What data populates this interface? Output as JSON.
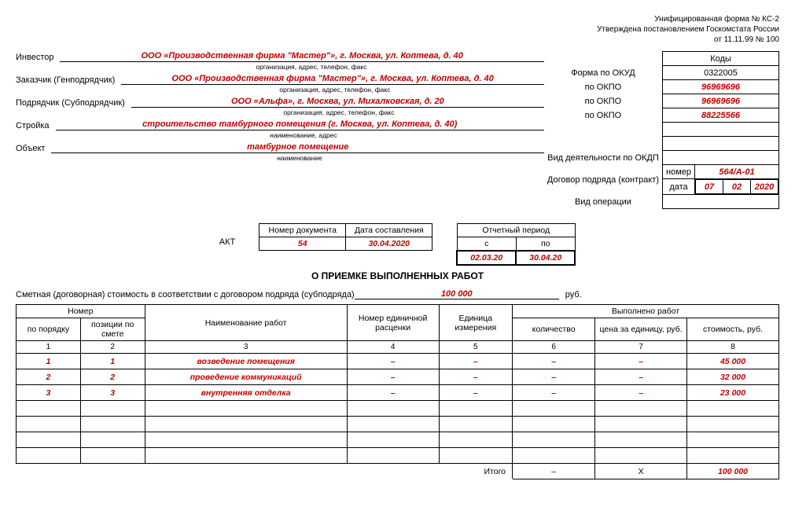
{
  "header": {
    "line1": "Унифицированная форма № КС-2",
    "line2": "Утверждена постановлением Госкомстата России",
    "line3": "от 11.11.99 № 100"
  },
  "codes": {
    "kody": "Коды",
    "okud_label": "Форма по ОКУД",
    "okud": "0322005",
    "okpo_label": "по ОКПО",
    "investor_okpo": "96969696",
    "customer_okpo": "96969696",
    "contractor_okpo": "88225566",
    "okdp_label": "Вид деятельности по ОКДП",
    "okdp": "",
    "contract_label": "Договор подряда (контракт)",
    "nomer_label": "номер",
    "nomer": "564/А-01",
    "data_label": "дата",
    "d": "07",
    "m": "02",
    "y": "2020",
    "oper_label": "Вид операции",
    "oper": ""
  },
  "parties": {
    "investor_label": "Инвестор",
    "investor": "ООО «Производственная фирма \"Мастер\"», г. Москва, ул. Коптева, д. 40",
    "customer_label": "Заказчик (Генподрядчик)",
    "customer": "ООО «Производственная фирма \"Мастер\"», г. Москва, ул. Коптева, д. 40",
    "contractor_label": "Подрядчик (Субподрядчик)",
    "contractor": "ООО «Альфа», г. Москва, ул. Михалковская, д. 20",
    "stroyka_label": "Стройка",
    "stroyka": "строительство тамбурного помещения (г. Москва, ул. Коптева, д. 40)",
    "object_label": "Объект",
    "object": "тамбурное помещение",
    "sub_org": "организация, адрес, телефон, факс",
    "sub_naim_addr": "наименование, адрес",
    "sub_naim": "наименование"
  },
  "doc": {
    "akt": "АКТ",
    "title": "О ПРИЕМКЕ ВЫПОЛНЕННЫХ РАБОТ",
    "nomer_doc_h": "Номер документа",
    "data_sost_h": "Дата составления",
    "nomer_doc": "54",
    "data_sost": "30.04.2020",
    "period_h": "Отчетный период",
    "s_h": "с",
    "po_h": "по",
    "s": "02.03.20",
    "po": "30.04.20"
  },
  "smeta": {
    "label": "Сметная (договорная) стоимость в соответствии с договором подряда (субподряда)",
    "value": "100 000",
    "rub": "руб."
  },
  "table": {
    "h_nomer": "Номер",
    "h_po_por": "по порядку",
    "h_poz": "позиции по смете",
    "h_naim": "Наименование работ",
    "h_nomer_ed": "Номер единичной расценки",
    "h_ed_izm": "Единица измерения",
    "h_vyp": "Выполнено работ",
    "h_kol": "количество",
    "h_cena": "цена за единицу, руб.",
    "h_stoim": "стоимость, руб.",
    "c1": "1",
    "c2": "2",
    "c3": "3",
    "c4": "4",
    "c5": "5",
    "c6": "6",
    "c7": "7",
    "c8": "8",
    "rows": [
      {
        "n": "1",
        "p": "1",
        "name": "возведение помещения",
        "ne": "–",
        "ei": "–",
        "k": "–",
        "c": "–",
        "s": "45 000"
      },
      {
        "n": "2",
        "p": "2",
        "name": "проведение коммуникаций",
        "ne": "–",
        "ei": "–",
        "k": "–",
        "c": "–",
        "s": "32 000"
      },
      {
        "n": "3",
        "p": "3",
        "name": "внутренняя отделка",
        "ne": "–",
        "ei": "–",
        "k": "–",
        "c": "–",
        "s": "23 000"
      }
    ],
    "itogo": "Итого",
    "itogo_k": "–",
    "itogo_c": "Х",
    "itogo_s": "100 000"
  }
}
